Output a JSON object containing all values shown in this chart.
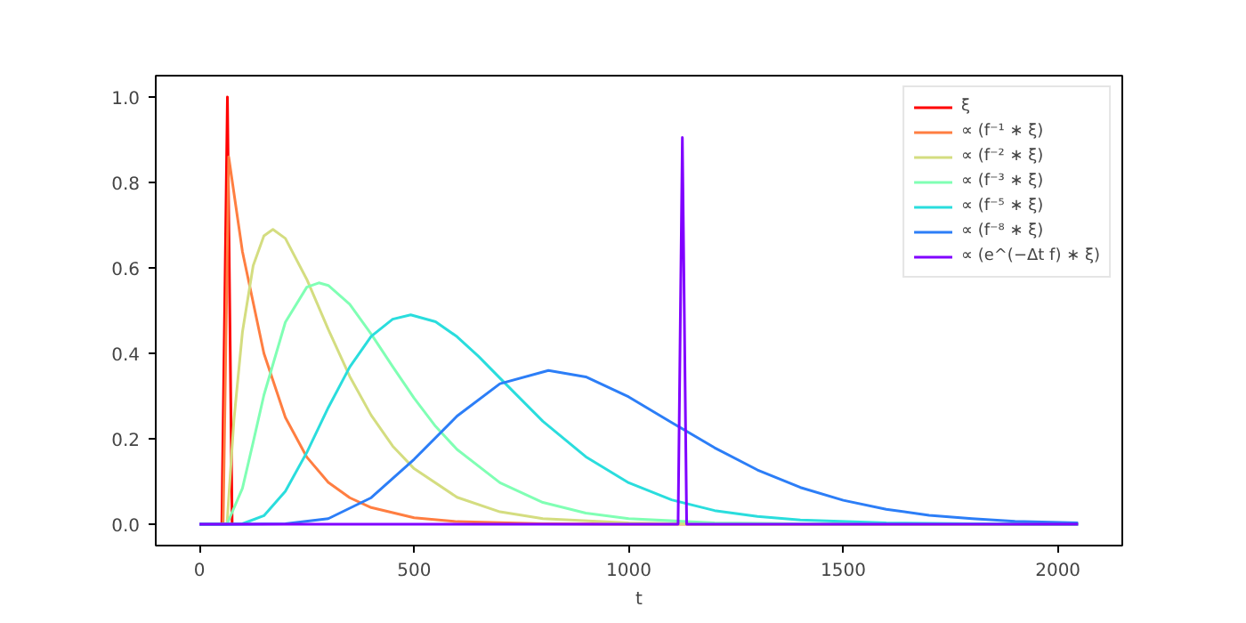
{
  "chart_data": {
    "type": "line",
    "xlabel": "t",
    "xlim": [
      -102,
      2150
    ],
    "ylim": [
      -0.05,
      1.05
    ],
    "xticks": [
      0,
      500,
      1000,
      1500,
      2000
    ],
    "yticks": [
      {
        "value": 0,
        "label": "0.0"
      },
      {
        "value": 0.2,
        "label": "0.2"
      },
      {
        "value": 0.4,
        "label": "0.4"
      },
      {
        "value": 0.6,
        "label": "0.6"
      },
      {
        "value": 0.8,
        "label": "0.8"
      },
      {
        "value": 1.0,
        "label": "1.0"
      }
    ],
    "grid": false,
    "legend": "top right",
    "marker": "none",
    "line_style": "solid",
    "series": [
      {
        "name": "ξ",
        "color": "#ff0000",
        "x": [
          52,
          65,
          76
        ],
        "values": [
          0,
          1.0,
          0
        ]
      },
      {
        "name": "∝ (f⁻¹ ∗ ξ)",
        "color": "#ff7e41",
        "x": [
          0,
          55,
          68,
          100,
          150,
          200,
          250,
          300,
          350,
          400,
          500,
          600,
          800,
          1000,
          2047
        ],
        "values": [
          0,
          0,
          0.86,
          0.638,
          0.4,
          0.25,
          0.157,
          0.098,
          0.062,
          0.039,
          0.015,
          0.006,
          0.001,
          0,
          0
        ]
      },
      {
        "name": "∝ (f⁻² ∗ ξ)",
        "color": "#d4dd80",
        "x": [
          0,
          64,
          80,
          100,
          125,
          150,
          171,
          200,
          250,
          300,
          350,
          400,
          450,
          500,
          600,
          700,
          800,
          1000,
          1200,
          2047
        ],
        "values": [
          0,
          0,
          0.242,
          0.45,
          0.605,
          0.675,
          0.69,
          0.669,
          0.573,
          0.456,
          0.346,
          0.255,
          0.183,
          0.13,
          0.063,
          0.029,
          0.013,
          0.003,
          0,
          0
        ]
      },
      {
        "name": "∝ (f⁻³ ∗ ξ)",
        "color": "#80ffb4",
        "x": [
          0,
          64,
          100,
          125,
          150,
          200,
          250,
          278,
          300,
          350,
          400,
          450,
          500,
          550,
          600,
          700,
          800,
          900,
          1000,
          1200,
          1400,
          2047
        ],
        "values": [
          0,
          0,
          0.084,
          0.192,
          0.302,
          0.473,
          0.555,
          0.565,
          0.559,
          0.515,
          0.445,
          0.369,
          0.295,
          0.229,
          0.175,
          0.097,
          0.051,
          0.026,
          0.013,
          0.003,
          0.001,
          0
        ]
      },
      {
        "name": "∝ (f⁻⁵ ∗ ξ)",
        "color": "#2adddd",
        "x": [
          0,
          64,
          100,
          150,
          200,
          250,
          300,
          350,
          400,
          450,
          492,
          550,
          600,
          650,
          700,
          800,
          900,
          1000,
          1100,
          1200,
          1300,
          1400,
          1600,
          1800,
          2047
        ],
        "values": [
          0,
          0,
          0.001,
          0.02,
          0.077,
          0.168,
          0.273,
          0.368,
          0.44,
          0.48,
          0.49,
          0.474,
          0.439,
          0.393,
          0.342,
          0.241,
          0.158,
          0.097,
          0.057,
          0.032,
          0.018,
          0.01,
          0.003,
          0.001,
          0
        ]
      },
      {
        "name": "∝ (f⁻⁸ ∗ ξ)",
        "color": "#2c7ef7",
        "x": [
          0,
          100,
          200,
          300,
          400,
          500,
          600,
          700,
          813,
          900,
          1000,
          1100,
          1200,
          1300,
          1400,
          1500,
          1600,
          1700,
          1800,
          1900,
          2047
        ],
        "values": [
          0,
          0,
          0.001,
          0.013,
          0.062,
          0.152,
          0.253,
          0.329,
          0.36,
          0.345,
          0.298,
          0.238,
          0.179,
          0.127,
          0.086,
          0.056,
          0.035,
          0.021,
          0.013,
          0.007,
          0.003
        ]
      },
      {
        "name": "∝ (e^(−Δt f) ∗ ξ)",
        "color": "#8000ff",
        "x": [
          0,
          1115,
          1125,
          1135,
          2047
        ],
        "values": [
          0,
          0,
          0.905,
          0,
          0
        ]
      }
    ]
  }
}
